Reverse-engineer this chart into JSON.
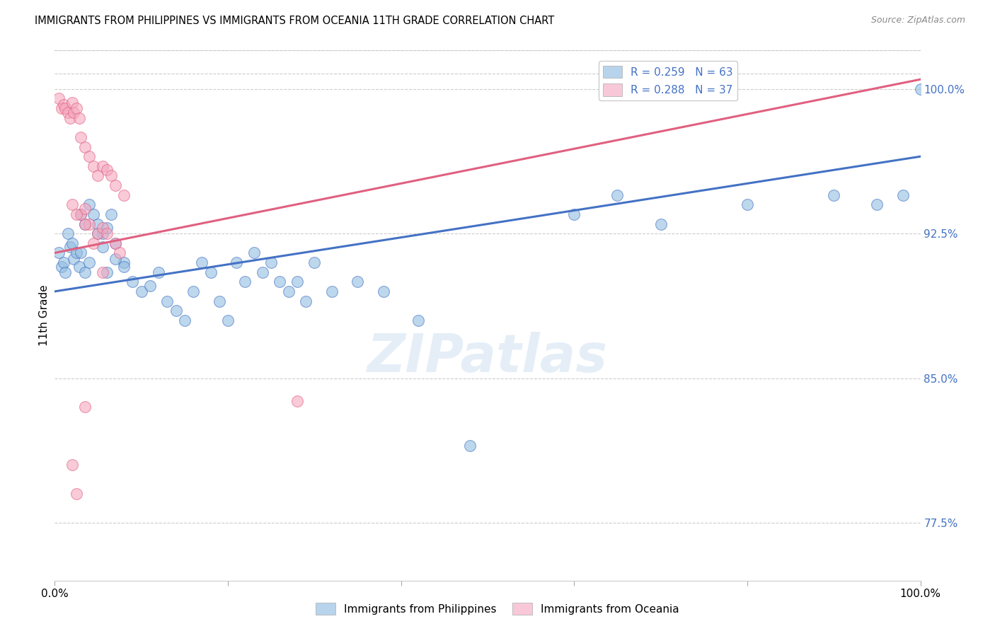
{
  "title": "IMMIGRANTS FROM PHILIPPINES VS IMMIGRANTS FROM OCEANIA 11TH GRADE CORRELATION CHART",
  "source": "Source: ZipAtlas.com",
  "ylabel": "11th Grade",
  "xlim": [
    0,
    100
  ],
  "ylim": [
    74.5,
    102.0
  ],
  "yticks": [
    77.5,
    85.0,
    92.5,
    100.0
  ],
  "ytick_labels": [
    "77.5%",
    "85.0%",
    "92.5%",
    "100.0%"
  ],
  "xticks": [
    0,
    20,
    40,
    60,
    80,
    100
  ],
  "blue_color": "#92bde0",
  "pink_color": "#f5a8bf",
  "blue_line_color": "#4472c4",
  "pink_line_color": "#e06080",
  "blue_legend_color": "#b8d4ec",
  "pink_legend_color": "#f8c8d8",
  "R_blue": 0.259,
  "N_blue": 63,
  "R_pink": 0.288,
  "N_pink": 37,
  "watermark": "ZIPatlas",
  "blue_trend_x": [
    0,
    100
  ],
  "blue_trend_y": [
    89.5,
    96.5
  ],
  "pink_trend_x": [
    0,
    100
  ],
  "pink_trend_y": [
    91.5,
    100.5
  ],
  "blue_points_x": [
    0.5,
    0.8,
    1.0,
    1.2,
    1.5,
    1.8,
    2.0,
    2.2,
    2.5,
    2.8,
    3.0,
    3.5,
    4.0,
    4.5,
    5.0,
    5.5,
    6.0,
    6.5,
    7.0,
    8.0,
    3.0,
    3.5,
    4.0,
    5.0,
    5.5,
    6.0,
    7.0,
    8.0,
    9.0,
    10.0,
    11.0,
    12.0,
    13.0,
    14.0,
    15.0,
    16.0,
    17.0,
    18.0,
    19.0,
    20.0,
    21.0,
    22.0,
    23.0,
    24.0,
    25.0,
    26.0,
    27.0,
    28.0,
    29.0,
    30.0,
    32.0,
    35.0,
    38.0,
    42.0,
    48.0,
    60.0,
    65.0,
    70.0,
    80.0,
    90.0,
    95.0,
    98.0,
    100.0
  ],
  "blue_points_y": [
    91.5,
    90.8,
    91.0,
    90.5,
    92.5,
    91.8,
    92.0,
    91.2,
    91.5,
    90.8,
    93.5,
    93.0,
    94.0,
    93.5,
    93.0,
    92.5,
    92.8,
    93.5,
    92.0,
    91.0,
    91.5,
    90.5,
    91.0,
    92.5,
    91.8,
    90.5,
    91.2,
    90.8,
    90.0,
    89.5,
    89.8,
    90.5,
    89.0,
    88.5,
    88.0,
    89.5,
    91.0,
    90.5,
    89.0,
    88.0,
    91.0,
    90.0,
    91.5,
    90.5,
    91.0,
    90.0,
    89.5,
    90.0,
    89.0,
    91.0,
    89.5,
    90.0,
    89.5,
    88.0,
    81.5,
    93.5,
    94.5,
    93.0,
    94.0,
    94.5,
    94.0,
    94.5,
    100.0
  ],
  "pink_points_x": [
    0.5,
    0.8,
    1.0,
    1.2,
    1.5,
    1.8,
    2.0,
    2.2,
    2.5,
    2.8,
    3.0,
    3.5,
    4.0,
    4.5,
    5.0,
    5.5,
    6.0,
    6.5,
    7.0,
    8.0,
    3.0,
    3.5,
    4.0,
    5.0,
    5.5,
    6.0,
    7.0,
    2.0,
    2.5,
    3.5,
    4.5,
    5.5,
    7.5,
    2.0,
    2.5,
    3.5,
    28.0
  ],
  "pink_points_y": [
    99.5,
    99.0,
    99.2,
    99.0,
    98.8,
    98.5,
    99.3,
    98.8,
    99.0,
    98.5,
    97.5,
    97.0,
    96.5,
    96.0,
    95.5,
    96.0,
    95.8,
    95.5,
    95.0,
    94.5,
    93.5,
    93.8,
    93.0,
    92.5,
    92.8,
    92.5,
    92.0,
    94.0,
    93.5,
    93.0,
    92.0,
    90.5,
    91.5,
    80.5,
    79.0,
    83.5,
    83.8
  ]
}
